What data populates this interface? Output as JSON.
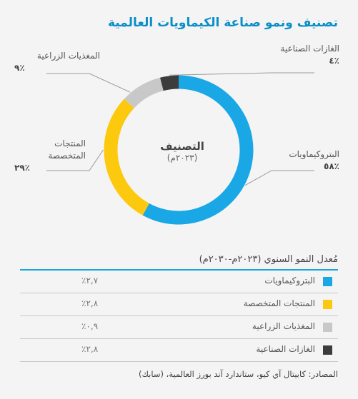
{
  "title": "تصنيف ونمو صناعة الكيماويات العالمية",
  "center": {
    "title": "التصنيف",
    "subtitle": "(٢٠٢٣م)"
  },
  "chart_data": {
    "type": "pie",
    "variant": "donut",
    "categories": [
      "البتروكيماويات",
      "المنتجات المتخصصة",
      "المغذيات الزراعية",
      "الغازات الصناعية"
    ],
    "values": [
      58,
      29,
      9,
      4
    ],
    "value_labels": [
      "٪٥٨",
      "٪٢٩",
      "٪٩",
      "٪٤"
    ],
    "colors": [
      "#1aa7e6",
      "#fcc90e",
      "#c8c8c8",
      "#3c3c3c"
    ]
  },
  "callouts": [
    {
      "label": "البتروكيماويات",
      "pct": "٪٥٨"
    },
    {
      "label": "المنتجات المتخصصة",
      "pct": "٪٢٩"
    },
    {
      "label": "المغذيات الزراعية",
      "pct": "٪٩"
    },
    {
      "label": "الغازات الصناعية",
      "pct": "٪٤"
    }
  ],
  "growth_table": {
    "title": "مُعدل النمو السنوي (٢٠٢٣م-٢٠٣٠م)",
    "rows": [
      {
        "label": "البتروكيماويات",
        "value": "٪٢,٧",
        "rate": 2.7,
        "color": "#1aa7e6"
      },
      {
        "label": "المنتجات المتخصصة",
        "value": "٪٢,٨",
        "rate": 2.8,
        "color": "#fcc90e"
      },
      {
        "label": "المغذيات الزراعية",
        "value": "٪٠,٩",
        "rate": 0.9,
        "color": "#c8c8c8"
      },
      {
        "label": "الغازات الصناعية",
        "value": "٪٢,٨",
        "rate": 2.8,
        "color": "#3c3c3c"
      }
    ]
  },
  "source": "المصادر: كابيتال آي كيو، ستاندارد آند بورز العالمية، (سابك)"
}
